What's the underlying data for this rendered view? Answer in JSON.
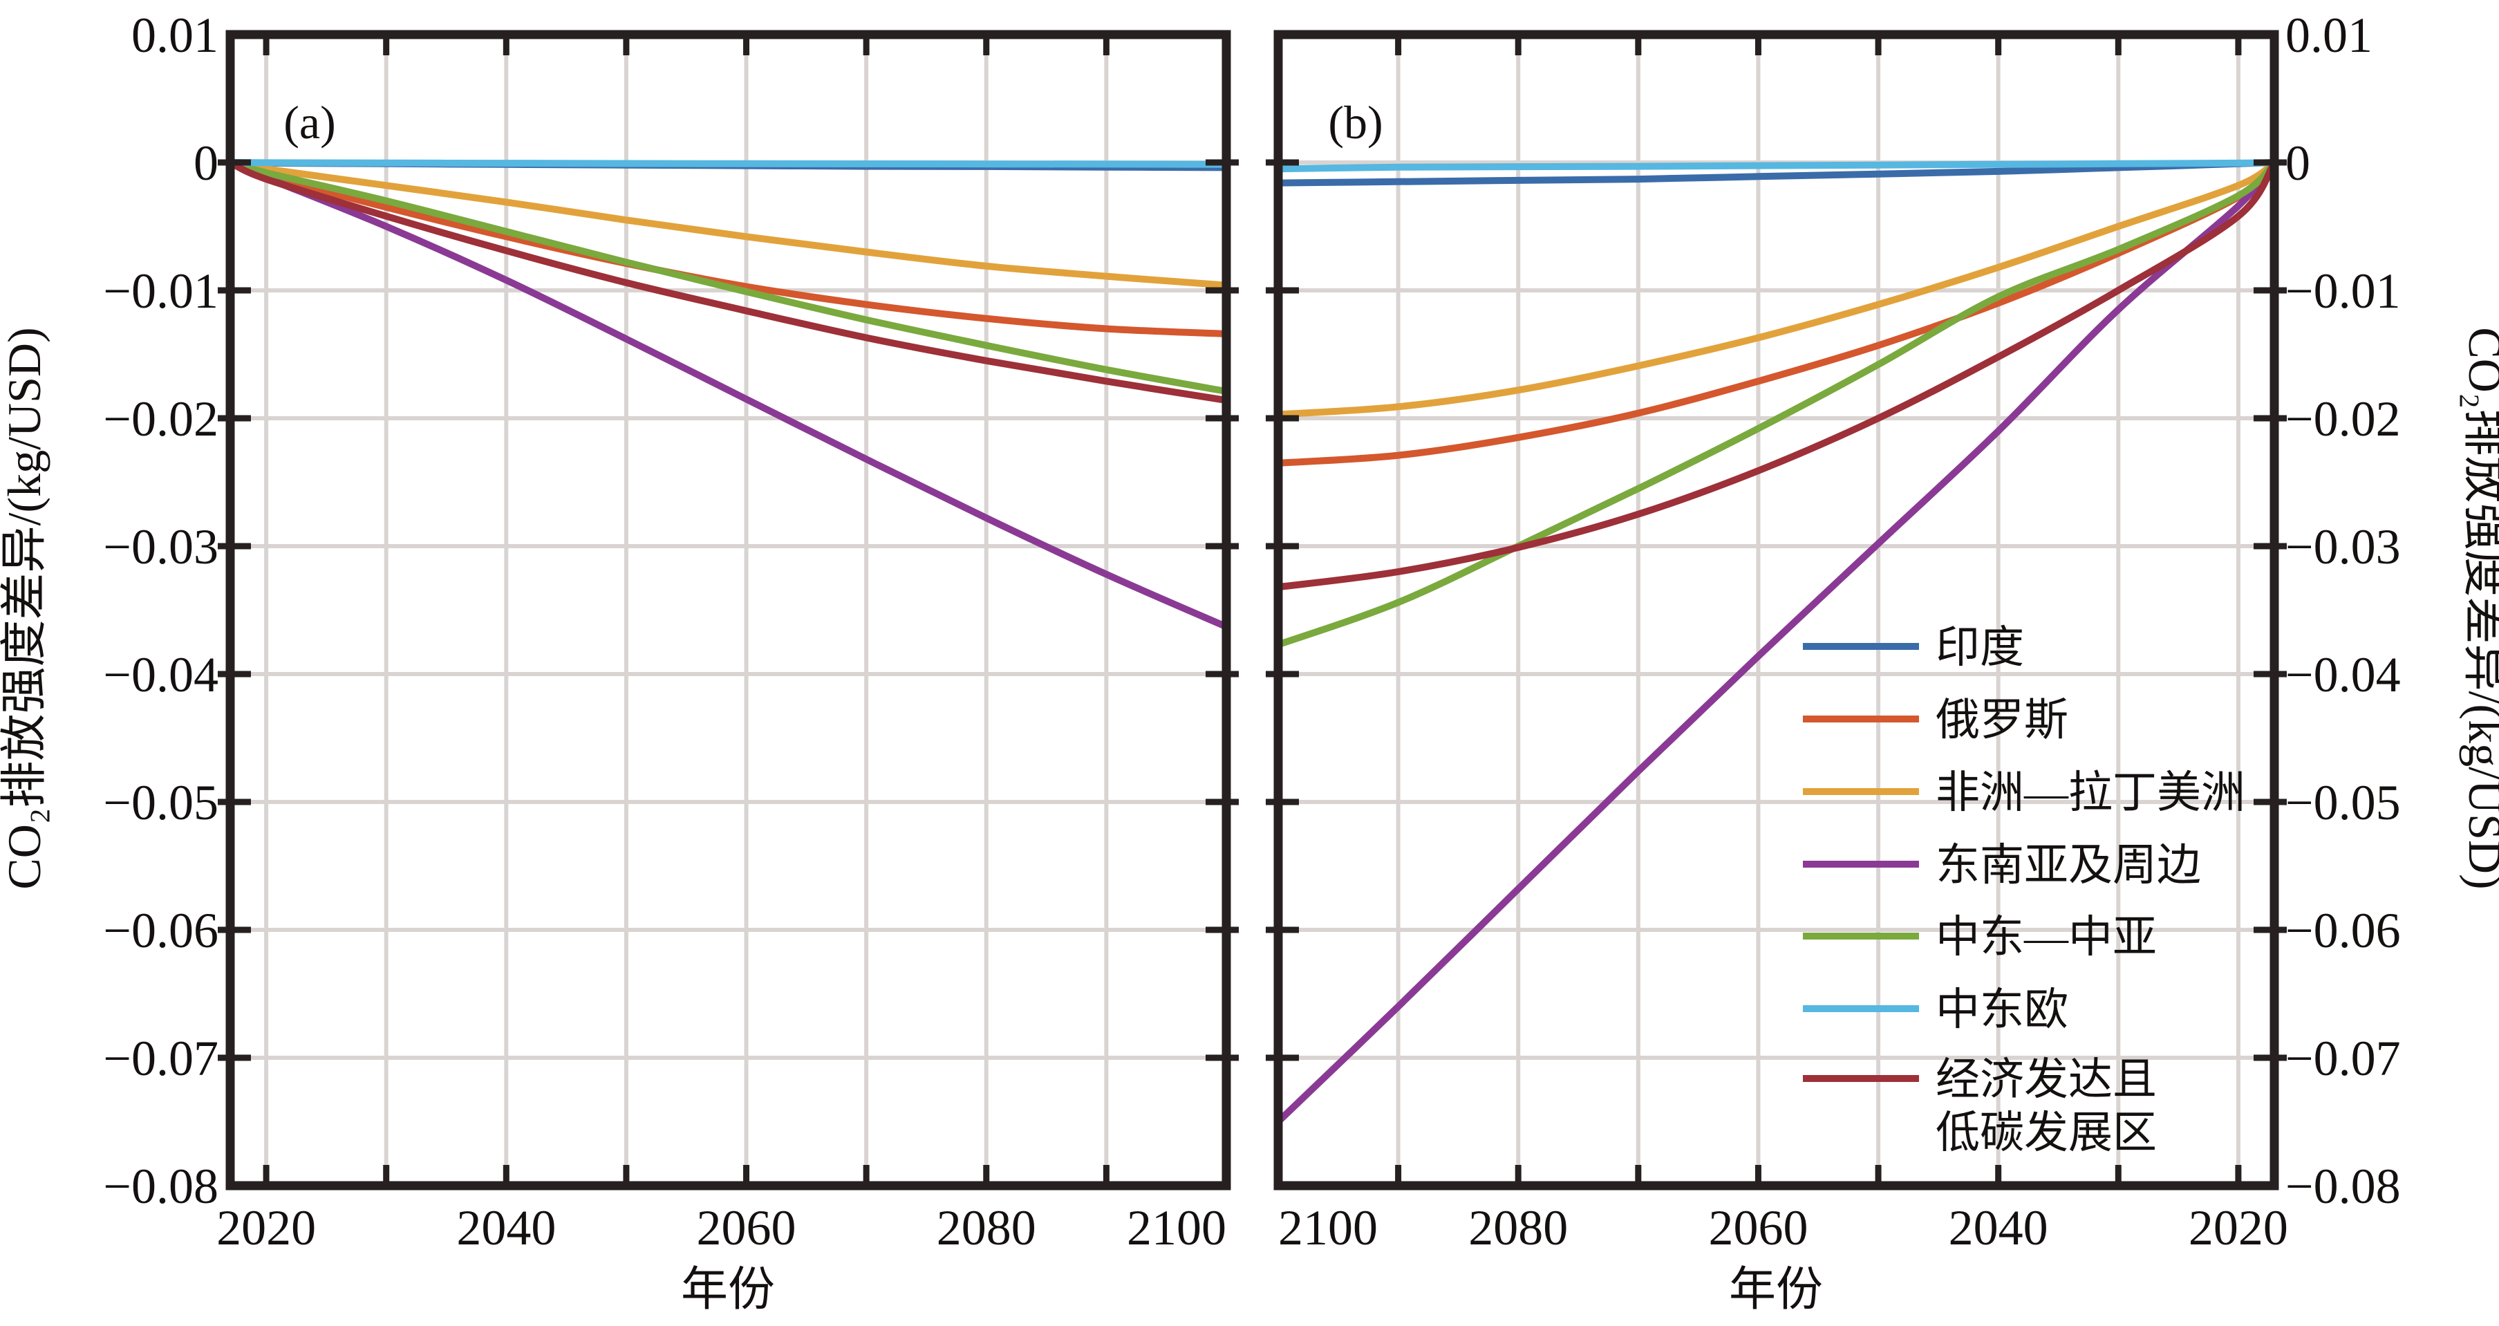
{
  "figure": {
    "background": "#ffffff",
    "frame_color": "#262020",
    "grid_color": "#d9d4d2",
    "text_color": "#141010"
  },
  "chart_data": {
    "type": "line",
    "title": "",
    "xlabel": "年份",
    "ylabel_left": "CO₂排放强度差异/(kg/USD)",
    "ylabel_right": "CO₂排放强度差异/(kg/USD)",
    "ylim": [
      -0.08,
      0.01
    ],
    "ytick_values": [
      0.01,
      0,
      -0.01,
      -0.02,
      -0.03,
      -0.04,
      -0.05,
      -0.06,
      -0.07,
      -0.08
    ],
    "ytick_labels": [
      "0.01",
      "0",
      "−0.01",
      "−0.02",
      "−0.03",
      "−0.04",
      "−0.05",
      "−0.06",
      "−0.07",
      "−0.08"
    ],
    "x_years": [
      2017,
      2020,
      2030,
      2040,
      2050,
      2060,
      2070,
      2080,
      2090,
      2100
    ],
    "grid_years": [
      2020,
      2030,
      2040,
      2050,
      2060,
      2070,
      2080,
      2090
    ],
    "grid_on": true,
    "panels": [
      {
        "id": "a",
        "label": "(a)",
        "x_reversed": false,
        "xtick_labels": [
          "2020",
          "2040",
          "2060",
          "2080",
          "2100"
        ],
        "xtick_years": [
          2020,
          2040,
          2060,
          2080,
          2100
        ]
      },
      {
        "id": "b",
        "label": "(b)",
        "x_reversed": true,
        "xtick_labels": [
          "2100",
          "2080",
          "2060",
          "2040",
          "2020"
        ],
        "xtick_years": [
          2100,
          2080,
          2060,
          2040,
          2020
        ]
      }
    ],
    "series": [
      {
        "id": "india",
        "name": "印度",
        "color": "#3a6ca9",
        "a": [
          0,
          -5e-05,
          -0.0001,
          -0.00015,
          -0.0002,
          -0.00025,
          -0.0003,
          -0.00032,
          -0.00036,
          -0.0004
        ],
        "b": [
          0,
          -0.0001,
          -0.0004,
          -0.0007,
          -0.0009,
          -0.0011,
          -0.0013,
          -0.0014,
          -0.0015,
          -0.0016
        ]
      },
      {
        "id": "russia",
        "name": "俄罗斯",
        "color": "#d4572e",
        "a": [
          0,
          -0.001,
          -0.0035,
          -0.0058,
          -0.0079,
          -0.0097,
          -0.0111,
          -0.0122,
          -0.013,
          -0.0134
        ],
        "b": [
          0,
          -0.0027,
          -0.0071,
          -0.011,
          -0.0143,
          -0.0171,
          -0.0196,
          -0.0215,
          -0.0229,
          -0.0235
        ]
      },
      {
        "id": "africa-latam",
        "name": "非洲—拉丁美洲",
        "color": "#e2a23b",
        "a": [
          0,
          -0.0005,
          -0.0018,
          -0.0031,
          -0.0045,
          -0.0058,
          -0.007,
          -0.0081,
          -0.0089,
          -0.0096
        ],
        "b": [
          0,
          -0.0018,
          -0.005,
          -0.0082,
          -0.0111,
          -0.0137,
          -0.0159,
          -0.0178,
          -0.0191,
          -0.0197
        ]
      },
      {
        "id": "se-asia",
        "name": "东南亚及周边",
        "color": "#8a3a94",
        "a": [
          0,
          -0.0012,
          -0.005,
          -0.0092,
          -0.0138,
          -0.0185,
          -0.0232,
          -0.0278,
          -0.0322,
          -0.0363
        ],
        "b": [
          0,
          -0.0034,
          -0.0115,
          -0.021,
          -0.0298,
          -0.0386,
          -0.0476,
          -0.0568,
          -0.066,
          -0.075
        ]
      },
      {
        "id": "me-ca",
        "name": "中东—中亚",
        "color": "#7aa93e",
        "a": [
          0,
          -0.0008,
          -0.003,
          -0.0054,
          -0.0078,
          -0.0101,
          -0.0123,
          -0.0143,
          -0.0162,
          -0.0179
        ],
        "b": [
          0,
          -0.0026,
          -0.0068,
          -0.0105,
          -0.0158,
          -0.0208,
          -0.0255,
          -0.03,
          -0.0344,
          -0.0377
        ]
      },
      {
        "id": "cee",
        "name": "中东欧",
        "color": "#56b7e1",
        "a": [
          0,
          -2e-05,
          -4e-05,
          -6e-05,
          -8e-05,
          -0.0001,
          -0.00011,
          -0.00012,
          -0.00013,
          -0.00015
        ],
        "b": [
          0,
          -5e-05,
          -0.0001,
          -0.00015,
          -0.0002,
          -0.00025,
          -0.0003,
          -0.00033,
          -0.00037,
          -0.0005
        ]
      },
      {
        "id": "dev-lowcarbon",
        "name": "经济发达且低碳发展区",
        "color": "#9d3038",
        "a": [
          0,
          -0.0013,
          -0.0042,
          -0.0069,
          -0.0094,
          -0.0116,
          -0.0137,
          -0.0155,
          -0.0171,
          -0.0186
        ],
        "b": [
          0,
          -0.0042,
          -0.01,
          -0.0152,
          -0.02,
          -0.0241,
          -0.0275,
          -0.0301,
          -0.032,
          -0.0332
        ]
      }
    ],
    "legend": {
      "position": "inside-panel-b-lower-right",
      "items": [
        {
          "series": "india",
          "lines": [
            "印度"
          ]
        },
        {
          "series": "russia",
          "lines": [
            "俄罗斯"
          ]
        },
        {
          "series": "africa-latam",
          "lines": [
            "非洲—拉丁美洲"
          ]
        },
        {
          "series": "se-asia",
          "lines": [
            "东南亚及周边"
          ]
        },
        {
          "series": "me-ca",
          "lines": [
            "中东—中亚"
          ]
        },
        {
          "series": "cee",
          "lines": [
            "中东欧"
          ]
        },
        {
          "series": "dev-lowcarbon",
          "lines": [
            "经济发达且",
            "低碳发展区"
          ]
        }
      ]
    }
  }
}
